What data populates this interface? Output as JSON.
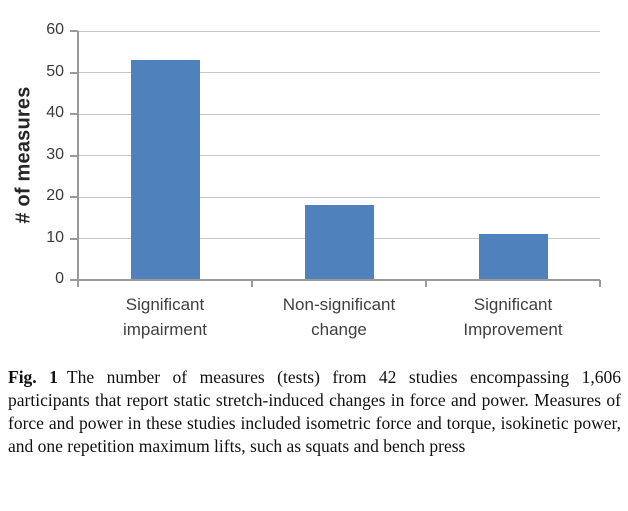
{
  "figure": {
    "caption_label": "Fig. 1",
    "caption_text": "The number of measures (tests) from 42 studies encompassing 1,606 participants that report static stretch-induced changes in force and power. Measures of force and power in these studies included isometric force and torque, isokinetic power, and one repetition maximum lifts, such as squats and bench press"
  },
  "chart_data": {
    "type": "bar",
    "categories": [
      "Significant\nimpairment",
      "Non-significant\nchange",
      "Significant\nImprovement"
    ],
    "values": [
      53,
      18,
      11
    ],
    "title": "",
    "xlabel": "",
    "ylabel": "# of measures",
    "ylim": [
      0,
      60
    ],
    "yticks": [
      0,
      10,
      20,
      30,
      40,
      50,
      60
    ],
    "grid": "horizontal-only",
    "legend": "none",
    "bar_color": "#4F81BD",
    "gridline_color": "#c6c6c6",
    "axis_color": "#9a9a9a"
  }
}
